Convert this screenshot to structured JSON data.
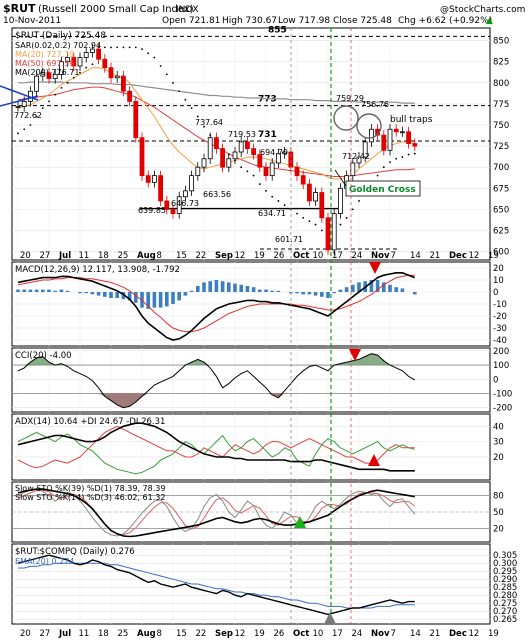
{
  "header": {
    "symbol": "$RUT",
    "name": "(Russell 2000 Small Cap Index)",
    "exchange": "INDX",
    "date": "10-Nov-2011",
    "open": "Open 721.81",
    "high": "High 730.67",
    "low": "Low 717.98",
    "close": "Close 725.48",
    "chg": "Chg +6.62 (+0.92%)",
    "chg_arrow": "▲",
    "watermark": "@StockCharts.com"
  },
  "x_labels": [
    "20",
    "27",
    "Jul",
    "11",
    "18",
    "25",
    "Aug",
    "8",
    "15",
    "22",
    "Sep",
    "12",
    "19",
    "26",
    "Oct",
    "10",
    "17",
    "24",
    "Nov",
    "7",
    "14",
    "21",
    "Dec",
    "12",
    "19"
  ],
  "chart_data": [
    {
      "type": "line",
      "panel": "price",
      "title": "$RUT (Daily) 725.48",
      "legend": [
        "SAR(0.02,0.2) 702.94",
        "MA(20) 727.39",
        "MA(50) 697.59",
        "MA(200) 776.71"
      ],
      "series_names": [
        "Price (candles)",
        "MA(20)",
        "MA(50)",
        "MA(200)",
        "SAR"
      ],
      "colors": {
        "up": "#000000",
        "down": "#e00000",
        "ma20": "#f0a040",
        "ma50": "#e04040",
        "ma200": "#909090"
      },
      "ylim": [
        590,
        865
      ],
      "yticks": [
        600,
        625,
        650,
        675,
        700,
        725,
        750,
        775,
        800,
        825,
        850
      ],
      "price": [
        772,
        778,
        790,
        808,
        812,
        805,
        810,
        825,
        830,
        820,
        830,
        836,
        840,
        828,
        818,
        806,
        808,
        790,
        778,
        735,
        690,
        682,
        690,
        660,
        650,
        645,
        665,
        672,
        690,
        700,
        710,
        735,
        722,
        700,
        710,
        718,
        730,
        722,
        715,
        700,
        690,
        705,
        716,
        718,
        700,
        690,
        680,
        660,
        670,
        640,
        602,
        645,
        675,
        690,
        705,
        712,
        730,
        745,
        738,
        720,
        745,
        742,
        742,
        728,
        725
      ],
      "ma20": [
        770,
        772,
        774,
        778,
        782,
        786,
        792,
        798,
        802,
        806,
        810,
        814,
        818,
        818,
        816,
        812,
        808,
        806,
        800,
        790,
        780,
        770,
        760,
        748,
        736,
        726,
        718,
        712,
        705,
        700,
        698,
        700,
        702,
        704,
        706,
        708,
        710,
        712,
        712,
        712,
        710,
        708,
        706,
        704,
        702,
        700,
        698,
        696,
        694,
        692,
        688,
        686,
        686,
        688,
        692,
        698,
        704,
        710,
        716,
        722,
        726,
        728,
        730,
        730,
        728
      ],
      "ma50": [
        780,
        781,
        782,
        783,
        784,
        785,
        786,
        788,
        790,
        792,
        793,
        794,
        795,
        795,
        794,
        792,
        790,
        788,
        786,
        783,
        779,
        775,
        771,
        766,
        761,
        756,
        751,
        746,
        741,
        736,
        732,
        728,
        724,
        720,
        716,
        712,
        709,
        706,
        703,
        701,
        700,
        699,
        698,
        697,
        696,
        695,
        694,
        693,
        692,
        691,
        690,
        689,
        689,
        689,
        690,
        691,
        692,
        693,
        694,
        695,
        696,
        697,
        697,
        697,
        698
      ],
      "ma200": [
        800,
        800,
        801,
        801,
        801,
        801,
        801,
        801,
        800,
        800,
        800,
        800,
        799,
        799,
        799,
        799,
        798,
        798,
        798,
        797,
        796,
        795,
        794,
        793,
        792,
        791,
        790,
        789,
        788,
        787,
        786,
        785,
        785,
        784,
        784,
        783,
        783,
        782,
        782,
        782,
        781,
        781,
        781,
        781,
        780,
        780,
        780,
        780,
        779,
        779,
        779,
        778,
        778,
        778,
        778,
        777,
        777,
        777,
        777,
        777,
        777,
        777,
        776,
        776,
        776
      ],
      "sar": [
        740,
        745,
        750,
        760,
        770,
        778,
        786,
        794,
        800,
        806,
        812,
        818,
        822,
        842,
        842,
        842,
        842,
        842,
        842,
        842,
        840,
        835,
        830,
        820,
        810,
        800,
        790,
        780,
        770,
        760,
        748,
        738,
        730,
        722,
        715,
        708,
        700,
        695,
        690,
        680,
        672,
        665,
        660,
        655,
        650,
        645,
        640,
        636,
        632,
        625,
        620,
        625,
        632,
        640,
        650,
        660,
        670,
        680,
        690,
        700,
        706,
        710,
        712,
        715,
        716
      ],
      "annotations": [
        "855",
        "773",
        "731",
        "772.62",
        "737.64",
        "719.53",
        "694.70",
        "663.56",
        "639.85",
        "646.73",
        "634.71",
        "601.71",
        "712.42",
        "759.29",
        "756.76",
        "bull traps",
        "Golden Cross"
      ]
    },
    {
      "type": "area",
      "panel": "macd",
      "title": "MACD(12,26,9) 12.117, 13.908, -1.792",
      "values": {
        "macd": 12.117,
        "signal": 13.908,
        "hist": -1.792
      },
      "ylim": [
        -45,
        25
      ],
      "yticks": [
        20,
        10,
        0,
        -10,
        -20,
        -30,
        -40
      ],
      "macd": [
        8,
        9,
        10,
        11,
        12,
        12,
        12,
        13,
        13,
        12,
        11,
        10,
        9,
        7,
        5,
        3,
        1,
        -2,
        -6,
        -12,
        -20,
        -26,
        -30,
        -34,
        -38,
        -40,
        -39,
        -36,
        -32,
        -27,
        -22,
        -18,
        -14,
        -12,
        -10,
        -9,
        -8,
        -7,
        -7,
        -8,
        -8,
        -9,
        -9,
        -10,
        -11,
        -12,
        -13,
        -14,
        -16,
        -18,
        -20,
        -16,
        -12,
        -8,
        -4,
        0,
        4,
        8,
        12,
        14,
        15,
        16,
        16,
        14,
        12
      ],
      "signal": [
        6,
        7,
        8,
        9,
        10,
        10,
        11,
        11,
        12,
        12,
        12,
        11,
        11,
        10,
        9,
        8,
        6,
        4,
        1,
        -3,
        -7,
        -12,
        -17,
        -21,
        -26,
        -30,
        -32,
        -33,
        -33,
        -32,
        -30,
        -27,
        -24,
        -21,
        -18,
        -16,
        -14,
        -12,
        -11,
        -10,
        -10,
        -10,
        -10,
        -10,
        -10,
        -11,
        -11,
        -12,
        -13,
        -14,
        -15,
        -15,
        -14,
        -12,
        -10,
        -8,
        -5,
        -2,
        2,
        6,
        9,
        12,
        13,
        14,
        14
      ]
    },
    {
      "type": "line",
      "panel": "cci",
      "title": "CCI(20) -4.00",
      "value": -4.0,
      "ylim": [
        -230,
        220
      ],
      "yticks": [
        200,
        100,
        0,
        -100,
        -200
      ],
      "values": [
        60,
        80,
        120,
        150,
        160,
        120,
        100,
        110,
        90,
        60,
        40,
        20,
        -10,
        -60,
        -120,
        -150,
        -180,
        -200,
        -190,
        -160,
        -120,
        -80,
        -40,
        -20,
        0,
        20,
        60,
        100,
        120,
        140,
        120,
        80,
        20,
        -60,
        -30,
        10,
        40,
        60,
        20,
        -20,
        -60,
        -110,
        -130,
        -80,
        -30,
        20,
        60,
        90,
        100,
        80,
        60,
        100,
        110,
        120,
        130,
        140,
        160,
        180,
        170,
        130,
        100,
        80,
        60,
        20,
        -4
      ]
    },
    {
      "type": "line",
      "panel": "adx",
      "title": "ADX(14) 10.64 +DI 24.67 -DI 26.31",
      "values": {
        "adx": 10.64,
        "plus_di": 24.67,
        "minus_di": 26.31
      },
      "ylim": [
        5,
        48
      ],
      "yticks": [
        40,
        30,
        20
      ],
      "adx": [
        28,
        29,
        30,
        31,
        32,
        33,
        34,
        34,
        33,
        32,
        31,
        30,
        30,
        31,
        33,
        36,
        38,
        40,
        41,
        42,
        42,
        41,
        40,
        38,
        36,
        33,
        30,
        28,
        26,
        24,
        22,
        21,
        20,
        20,
        20,
        19,
        19,
        18,
        18,
        18,
        18,
        18,
        18,
        18,
        17,
        17,
        17,
        17,
        18,
        18,
        17,
        16,
        15,
        14,
        13,
        12,
        12,
        12,
        12,
        12,
        11,
        11,
        11,
        11,
        11
      ],
      "plus_di": [
        30,
        32,
        34,
        36,
        34,
        32,
        30,
        33,
        35,
        32,
        28,
        26,
        24,
        20,
        16,
        14,
        12,
        11,
        10,
        9,
        10,
        12,
        14,
        18,
        20,
        22,
        26,
        30,
        28,
        24,
        22,
        26,
        30,
        34,
        28,
        24,
        26,
        30,
        32,
        28,
        24,
        20,
        22,
        26,
        24,
        18,
        16,
        14,
        22,
        28,
        32,
        30,
        26,
        24,
        22,
        24,
        26,
        28,
        30,
        26,
        24,
        26,
        28,
        26,
        25
      ],
      "minus_di": [
        18,
        16,
        14,
        13,
        14,
        16,
        18,
        17,
        16,
        18,
        20,
        24,
        28,
        32,
        36,
        38,
        40,
        38,
        36,
        34,
        32,
        30,
        28,
        26,
        24,
        24,
        22,
        20,
        20,
        22,
        26,
        24,
        22,
        20,
        24,
        28,
        26,
        24,
        22,
        24,
        28,
        30,
        30,
        28,
        26,
        28,
        30,
        32,
        30,
        28,
        26,
        24,
        22,
        20,
        20,
        18,
        16,
        16,
        18,
        22,
        26,
        28,
        26,
        26,
        26
      ]
    },
    {
      "type": "line",
      "panel": "sto",
      "title": "Slow STO %K(39) %D(1) 78.39, 78.39 / Slow STO %K(14) %D(3) 46.02, 61.32",
      "values": {
        "k39": 78.39,
        "k14": 46.02,
        "d14": 61.32
      },
      "ylim": [
        -5,
        105
      ],
      "yticks": [
        80,
        50,
        20
      ],
      "sto39": [
        85,
        88,
        90,
        92,
        92,
        90,
        88,
        86,
        84,
        80,
        74,
        66,
        56,
        42,
        28,
        16,
        10,
        6,
        5,
        6,
        8,
        10,
        12,
        14,
        16,
        18,
        20,
        22,
        24,
        26,
        30,
        34,
        38,
        40,
        36,
        32,
        30,
        32,
        36,
        38,
        36,
        32,
        28,
        26,
        26,
        28,
        30,
        32,
        36,
        40,
        44,
        52,
        60,
        68,
        74,
        80,
        84,
        88,
        90,
        88,
        86,
        84,
        82,
        80,
        78
      ],
      "sto14k": [
        80,
        86,
        90,
        92,
        88,
        80,
        70,
        78,
        86,
        82,
        70,
        56,
        40,
        26,
        14,
        8,
        6,
        10,
        20,
        34,
        48,
        60,
        70,
        72,
        60,
        40,
        22,
        14,
        20,
        36,
        60,
        76,
        82,
        70,
        50,
        40,
        54,
        70,
        62,
        40,
        26,
        20,
        32,
        50,
        44,
        30,
        24,
        40,
        60,
        70,
        62,
        56,
        64,
        76,
        84,
        88,
        86,
        82,
        84,
        70,
        60,
        72,
        74,
        60,
        46
      ],
      "sto14d": [
        76,
        80,
        85,
        89,
        90,
        87,
        79,
        76,
        78,
        82,
        79,
        69,
        55,
        41,
        27,
        16,
        9,
        8,
        12,
        21,
        34,
        47,
        59,
        67,
        67,
        57,
        41,
        25,
        19,
        23,
        39,
        57,
        73,
        76,
        67,
        53,
        48,
        55,
        62,
        57,
        43,
        29,
        26,
        34,
        42,
        41,
        33,
        31,
        41,
        57,
        64,
        63,
        61,
        65,
        75,
        83,
        86,
        85,
        84,
        79,
        71,
        67,
        69,
        69,
        61
      ]
    },
    {
      "type": "line",
      "panel": "ratio",
      "title": "$RUT:$COMPQ (Daily) 0.276",
      "legend": [
        "EMA(20) 0.274"
      ],
      "value": 0.276,
      "ema20": 0.274,
      "ylim": [
        0.262,
        0.312
      ],
      "yticks": [
        0.305,
        0.3,
        0.295,
        0.29,
        0.285,
        0.28,
        0.275,
        0.27,
        0.265
      ],
      "values": [
        0.3,
        0.301,
        0.302,
        0.303,
        0.304,
        0.305,
        0.304,
        0.303,
        0.302,
        0.3,
        0.299,
        0.3,
        0.302,
        0.301,
        0.299,
        0.298,
        0.296,
        0.295,
        0.294,
        0.292,
        0.29,
        0.288,
        0.289,
        0.287,
        0.286,
        0.285,
        0.286,
        0.287,
        0.285,
        0.284,
        0.283,
        0.282,
        0.281,
        0.283,
        0.282,
        0.28,
        0.279,
        0.281,
        0.28,
        0.279,
        0.278,
        0.277,
        0.276,
        0.275,
        0.274,
        0.273,
        0.272,
        0.271,
        0.27,
        0.269,
        0.268,
        0.269,
        0.27,
        0.271,
        0.272,
        0.272,
        0.273,
        0.274,
        0.275,
        0.276,
        0.277,
        0.276,
        0.275,
        0.276,
        0.276
      ],
      "ema": [
        0.297,
        0.297,
        0.298,
        0.298,
        0.299,
        0.299,
        0.3,
        0.3,
        0.3,
        0.3,
        0.3,
        0.3,
        0.3,
        0.3,
        0.3,
        0.299,
        0.299,
        0.298,
        0.297,
        0.296,
        0.295,
        0.294,
        0.293,
        0.292,
        0.291,
        0.29,
        0.289,
        0.288,
        0.287,
        0.287,
        0.286,
        0.285,
        0.284,
        0.284,
        0.283,
        0.282,
        0.282,
        0.281,
        0.281,
        0.28,
        0.28,
        0.279,
        0.279,
        0.278,
        0.277,
        0.277,
        0.276,
        0.275,
        0.275,
        0.274,
        0.273,
        0.273,
        0.273,
        0.272,
        0.272,
        0.272,
        0.272,
        0.272,
        0.273,
        0.273,
        0.273,
        0.274,
        0.274,
        0.274,
        0.274
      ]
    }
  ]
}
